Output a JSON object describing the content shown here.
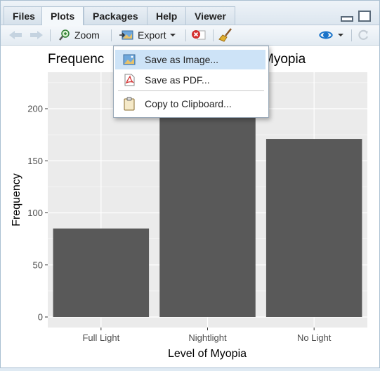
{
  "tabs": [
    {
      "label": "Files",
      "active": false
    },
    {
      "label": "Plots",
      "active": true
    },
    {
      "label": "Packages",
      "active": false
    },
    {
      "label": "Help",
      "active": false
    },
    {
      "label": "Viewer",
      "active": false
    }
  ],
  "toolbar": {
    "zoom_label": "Zoom",
    "export_label": "Export",
    "icons": [
      "back-arrow-icon",
      "forward-arrow-icon",
      "zoom-icon",
      "export-icon",
      "chevron-down-icon",
      "remove-plot-icon",
      "broom-icon",
      "publish-icon",
      "refresh-icon"
    ]
  },
  "export_menu": {
    "items": [
      {
        "label": "Save as Image...",
        "icon": "image-icon",
        "highlighted": true
      },
      {
        "label": "Save as PDF...",
        "icon": "pdf-icon",
        "highlighted": false
      },
      {
        "label": "Copy to Clipboard...",
        "icon": "clipboard-icon",
        "highlighted": false
      }
    ]
  },
  "plot": {
    "title_left": "Frequenc",
    "title_right": "Myopia"
  },
  "chart_data": {
    "type": "bar",
    "categories": [
      "Full Light",
      "Nightlight",
      "No Light"
    ],
    "values": [
      85,
      200,
      171
    ],
    "xlabel": "Level of Myopia",
    "ylabel": "Frequency",
    "ylim": [
      0,
      230
    ],
    "yticks": [
      0,
      50,
      100,
      150,
      200
    ],
    "grid": true,
    "colors": {
      "bar": "#595959",
      "panel": "#ebebeb",
      "grid": "#ffffff"
    }
  }
}
